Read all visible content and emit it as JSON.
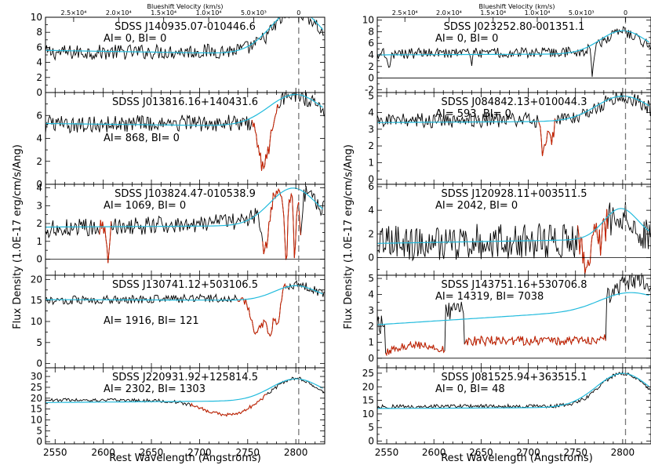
{
  "figure": {
    "ylabel": "Flux Density (1.0E-17 erg/cm/s/Ang)",
    "xlabel": "Rest Wavelength (Angstroms)",
    "top_axis_label": "Blueshift Velocity (km/s)",
    "top_ticks": [
      "2.5×10⁴",
      "2.0×10⁴",
      "1.5×10⁴",
      "1.0×10⁴",
      "5.0×10³",
      "0"
    ],
    "bottom_ticks": [
      "2550",
      "2600",
      "2650",
      "2700",
      "2750",
      "2800"
    ],
    "colors": {
      "spectrum": "#000000",
      "absorption": "#cc2200",
      "continuum": "#22bbdd",
      "dashed_line": "#777777"
    }
  },
  "chart_data": [
    {
      "type": "line",
      "title": "SDSS J140935.07-010446.6",
      "annotation": "AI= 0, BI= 0",
      "xlim": [
        2540,
        2830
      ],
      "ylim": [
        0,
        10
      ],
      "yticks": [
        0,
        2,
        4,
        6,
        8,
        10
      ],
      "zero_line": false,
      "features": [],
      "absorption": []
    },
    {
      "type": "line",
      "title": "SDSS J013816.16+140431.6",
      "annotation": "AI= 868, BI= 0",
      "xlim": [
        2540,
        2830
      ],
      "ylim": [
        0,
        8
      ],
      "yticks": [
        0,
        2,
        4,
        6
      ],
      "zero_line": false,
      "features": [
        [
          2767,
          -4.5,
          6
        ]
      ],
      "absorption": [
        [
          2754,
          2782
        ]
      ]
    },
    {
      "type": "line",
      "title": "SDSS J103824.47-010538.9",
      "annotation": "AI= 1069, BI= 0",
      "xlim": [
        2540,
        2830
      ],
      "ylim": [
        -0.9,
        4.2
      ],
      "yticks": [
        0,
        1,
        2,
        3,
        4
      ],
      "zero_line": true,
      "features": [
        [
          2605,
          -1.8,
          1.2
        ],
        [
          2768,
          -2.4,
          3
        ],
        [
          2790,
          -3.5,
          1.8
        ],
        [
          2799,
          -4,
          1.2
        ],
        [
          2805,
          -2.5,
          1.5
        ]
      ],
      "absorption": [
        [
          2595,
          2609
        ],
        [
          2765,
          2806
        ]
      ]
    },
    {
      "type": "line",
      "title": "SDSS J130741.12+503106.5",
      "annotation": "AI= 1916, BI= 121",
      "xlim": [
        2540,
        2830
      ],
      "ylim": [
        -1,
        21
      ],
      "yticks": [
        0,
        5,
        10,
        15,
        20
      ],
      "zero_line": false,
      "features": [
        [
          2758,
          -8,
          5
        ],
        [
          2773,
          -10,
          3
        ],
        [
          2781,
          -8,
          2.5
        ],
        [
          2766,
          -4,
          3
        ]
      ],
      "absorption": [
        [
          2738,
          2790
        ]
      ]
    },
    {
      "type": "line",
      "title": "SDSS J220931.92+125814.5",
      "annotation": "AI= 2302, BI= 1303",
      "xlim": [
        2540,
        2830
      ],
      "ylim": [
        -1,
        34
      ],
      "yticks": [
        0,
        5,
        10,
        15,
        20,
        25,
        30
      ],
      "zero_line": false,
      "features": [
        [
          2715,
          -4,
          20
        ],
        [
          2740,
          -4,
          18
        ]
      ],
      "absorption": [
        [
          2690,
          2770
        ]
      ]
    },
    {
      "type": "line",
      "title": "SDSS J023252.80-001351.1",
      "annotation": "AI= 0, BI= 0",
      "xlim": [
        2540,
        2830
      ],
      "ylim": [
        -2.5,
        10.5
      ],
      "yticks": [
        -2,
        0,
        2,
        4,
        6,
        8,
        10
      ],
      "zero_line": true,
      "features": [
        [
          2552,
          -3,
          1.5
        ],
        [
          2768,
          -4.5,
          1.2
        ],
        [
          2640,
          -1.5,
          1.2
        ]
      ],
      "absorption": []
    },
    {
      "type": "line",
      "title": "SDSS J084842.13+010044.3",
      "annotation": "AI= 593, BI= 0",
      "xlim": [
        2540,
        2830
      ],
      "ylim": [
        -0.3,
        5.2
      ],
      "yticks": [
        0,
        1,
        2,
        3,
        4,
        5
      ],
      "zero_line": false,
      "features": [
        [
          2716,
          -2,
          2.5
        ],
        [
          2725,
          -1.2,
          2
        ]
      ],
      "absorption": [
        [
          2710,
          2730
        ]
      ]
    },
    {
      "type": "line",
      "title": "SDSS J120928.11+003511.5",
      "annotation": "AI= 2042, BI= 0",
      "xlim": [
        2540,
        2830
      ],
      "ylim": [
        -1.5,
        6.2
      ],
      "yticks": [
        0,
        2,
        4,
        6
      ],
      "zero_line": true,
      "features": [
        [
          2762,
          -2.5,
          3
        ],
        [
          2775,
          -1,
          2
        ]
      ],
      "absorption": [
        [
          2752,
          2785
        ]
      ]
    },
    {
      "type": "line",
      "title": "SDSS J143751.16+530706.8",
      "annotation": "AI= 14319, BI= 7038",
      "xlim": [
        2540,
        2830
      ],
      "ylim": [
        -0.6,
        5.2
      ],
      "yticks": [
        0,
        1,
        2,
        3,
        4,
        5
      ],
      "zero_line": true,
      "features": [],
      "absorption": [
        [
          2548,
          2612
        ],
        [
          2632,
          2782
        ]
      ]
    },
    {
      "type": "line",
      "title": "SDSS J081525.94+363515.1",
      "annotation": "AI= 0, BI= 48",
      "xlim": [
        2540,
        2830
      ],
      "ylim": [
        -1,
        27
      ],
      "yticks": [
        0,
        5,
        10,
        15,
        20,
        25
      ],
      "zero_line": false,
      "features": [],
      "absorption": []
    }
  ]
}
